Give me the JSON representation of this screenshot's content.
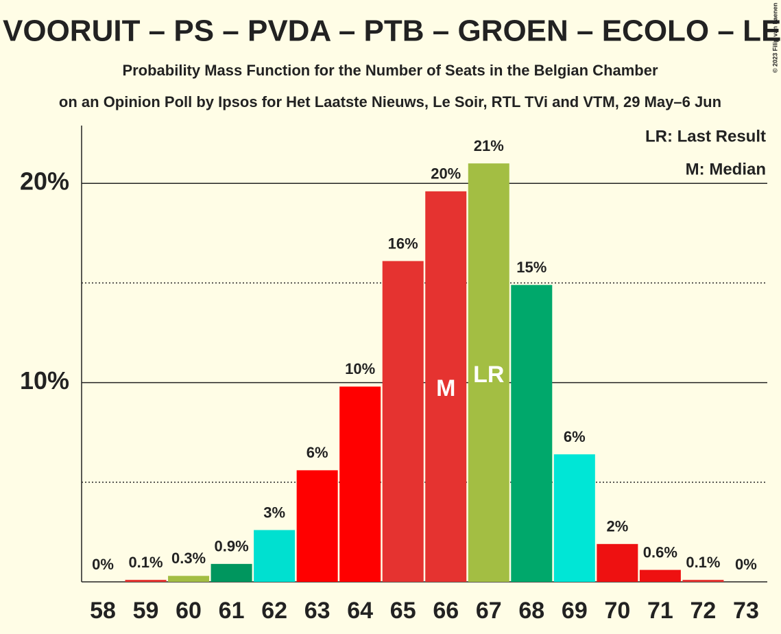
{
  "chart_data": {
    "type": "bar",
    "title": "VOORUIT – PS – PVDA – PTB – GROEN – ECOLO – LE",
    "subtitle": "Probability Mass Function for the Number of Seats in the Belgian Chamber",
    "caption": "on an Opinion Poll by Ipsos for Het Laatste Nieuws, Le Soir, RTL TVi and VTM, 29 May–6 Jun",
    "copyright": "© 2023 Filip van Laenen",
    "categories": [
      58,
      59,
      60,
      61,
      62,
      63,
      64,
      65,
      66,
      67,
      68,
      69,
      70,
      71,
      72,
      73
    ],
    "values": [
      0,
      0.1,
      0.3,
      0.9,
      2.6,
      5.6,
      9.8,
      16.1,
      19.6,
      21.0,
      14.9,
      6.4,
      1.9,
      0.6,
      0.1,
      0
    ],
    "value_labels": [
      "0%",
      "0.1%",
      "0.3%",
      "0.9%",
      "3%",
      "6%",
      "10%",
      "16%",
      "20%",
      "21%",
      "15%",
      "6%",
      "2%",
      "0.6%",
      "0.1%",
      "0%"
    ],
    "colors": [
      "#e53330",
      "#e53330",
      "#a3be43",
      "#00965e",
      "#00e0d0",
      "#ff0000",
      "#ff0000",
      "#e53330",
      "#e53330",
      "#a3be43",
      "#00a86b",
      "#00e6d6",
      "#ee1111",
      "#ee1111",
      "#e53330",
      "#e53330"
    ],
    "ylim": [
      0,
      22.9
    ],
    "yticks": [
      {
        "value": 10,
        "label": "10%"
      },
      {
        "value": 20,
        "label": "20%"
      }
    ],
    "minor_yticks": [
      5,
      15
    ],
    "median": 66,
    "median_label": "M",
    "last_result": 67,
    "last_result_label": "LR",
    "legend": [
      "LR: Last Result",
      "M: Median"
    ]
  }
}
